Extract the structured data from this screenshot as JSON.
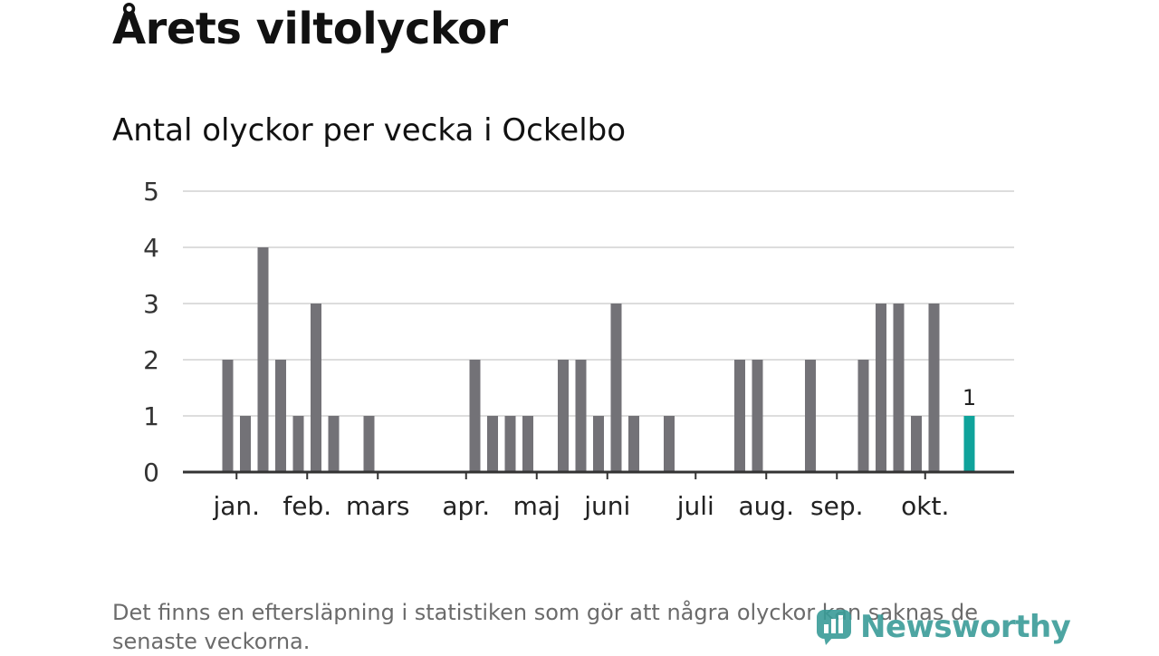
{
  "title": "Årets viltolyckor",
  "subtitle": "Antal olyckor per vecka i Ockelbo",
  "footnote": "Det finns en eftersläpning i statistiken som gör att några olyckor kan saknas de senaste veckorna.",
  "logo": {
    "text": "Newsworthy",
    "icon": "newsworthy-logo-icon"
  },
  "colors": {
    "bar": "#737277",
    "highlight": "#0fa39b",
    "grid": "#dddddd",
    "axis": "#333333"
  },
  "chart_data": {
    "type": "bar",
    "title": "Antal olyckor per vecka i Ockelbo",
    "xlabel": "",
    "ylabel": "",
    "ylim": [
      0,
      5
    ],
    "yticks": [
      "0",
      "1",
      "2",
      "3",
      "4",
      "5"
    ],
    "grid": true,
    "weeks": [
      1,
      2,
      3,
      4,
      5,
      6,
      7,
      8,
      9,
      10,
      11,
      12,
      13,
      14,
      15,
      16,
      17,
      18,
      19,
      20,
      21,
      22,
      23,
      24,
      25,
      26,
      27,
      28,
      29,
      30,
      31,
      32,
      33,
      34,
      35,
      36,
      37,
      38,
      39,
      40,
      41,
      42,
      43,
      44,
      45
    ],
    "values": [
      2,
      1,
      4,
      2,
      1,
      3,
      1,
      0,
      1,
      0,
      0,
      0,
      0,
      0,
      2,
      1,
      1,
      1,
      0,
      2,
      2,
      1,
      3,
      1,
      0,
      1,
      0,
      0,
      0,
      2,
      2,
      0,
      0,
      2,
      0,
      0,
      2,
      3,
      3,
      1,
      3,
      0,
      1,
      0,
      0
    ],
    "highlight": {
      "week": 43,
      "value": 1,
      "label": "1"
    },
    "month_labels": [
      {
        "label": "jan.",
        "week": 1.5
      },
      {
        "label": "feb.",
        "week": 5.5
      },
      {
        "label": "mars",
        "week": 9.5
      },
      {
        "label": "apr.",
        "week": 14.5
      },
      {
        "label": "maj",
        "week": 18.5
      },
      {
        "label": "juni",
        "week": 22.5
      },
      {
        "label": "juli",
        "week": 27.5
      },
      {
        "label": "aug.",
        "week": 31.5
      },
      {
        "label": "sep.",
        "week": 35.5
      },
      {
        "label": "okt.",
        "week": 40.5
      }
    ]
  }
}
